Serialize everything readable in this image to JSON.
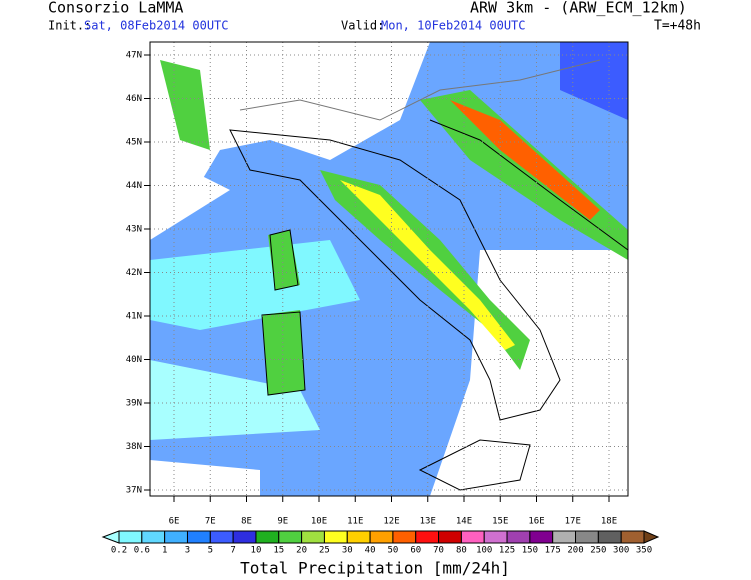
{
  "header": {
    "organization": "Consorzio LaMMA",
    "model": "ARW 3km - (ARW_ECM_12km)",
    "init_label": "Init.:",
    "init_value": "Sat, 08Feb2014 00UTC",
    "valid_label": "Valid:",
    "valid_value": "Mon, 10Feb2014 00UTC",
    "lead_time": "T=+48h"
  },
  "map": {
    "latitude_labels": [
      "47N",
      "46N",
      "45N",
      "44N",
      "43N",
      "42N",
      "41N",
      "40N",
      "39N",
      "38N",
      "37N"
    ],
    "longitude_labels": [
      "6E",
      "7E",
      "8E",
      "9E",
      "10E",
      "11E",
      "12E",
      "13E",
      "14E",
      "15E",
      "16E",
      "17E",
      "18E"
    ]
  },
  "colorbar": {
    "labels": [
      0.2,
      0.6,
      1,
      3,
      5,
      7,
      10,
      15,
      20,
      25,
      30,
      40,
      50,
      60,
      70,
      80,
      100,
      125,
      150,
      175,
      200,
      250,
      300,
      350
    ],
    "colors": [
      "#a8ffff",
      "#80f8ff",
      "#60d8ff",
      "#40b0ff",
      "#2080ff",
      "#3c5cff",
      "#2e2ee0",
      "#20b020",
      "#50d040",
      "#a0e040",
      "#ffff20",
      "#ffd000",
      "#ffa000",
      "#ff6000",
      "#ff1010",
      "#d00000",
      "#ff60c0",
      "#d070d0",
      "#a040b0",
      "#800090",
      "#b0b0b0",
      "#888888",
      "#606060",
      "#a06030",
      "#704018"
    ],
    "caption": "Total Precipitation [mm/24h]"
  }
}
